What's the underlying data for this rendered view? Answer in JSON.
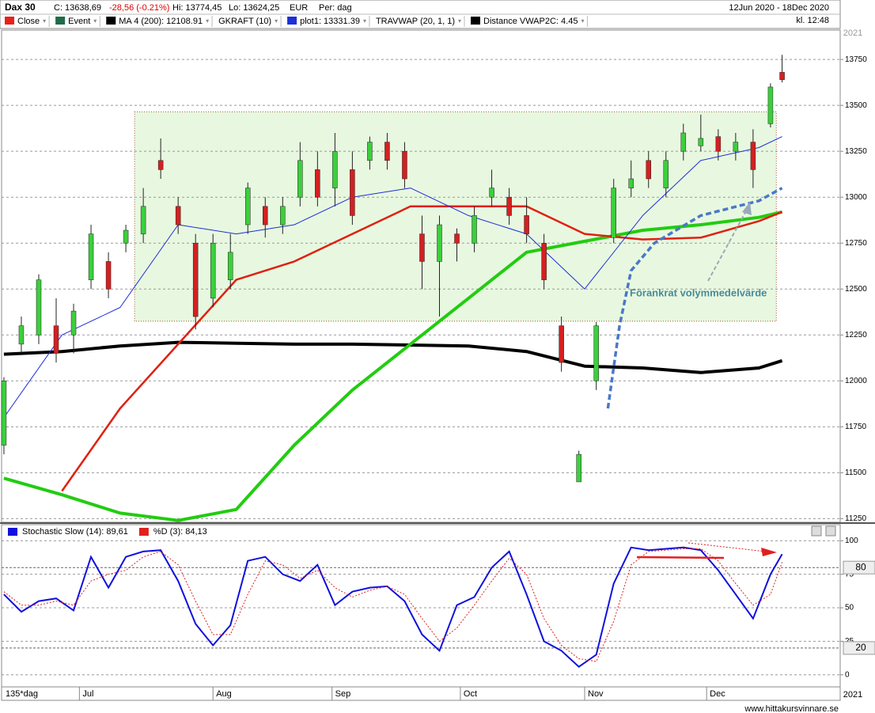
{
  "header": {
    "symbol": "Dax 30",
    "close": "C: 13638,69",
    "change": "-28,56 (-0.21%)",
    "high": "Hi: 13774,45",
    "low": "Lo: 13624,25",
    "currency": "EUR",
    "period": "Per: dag",
    "range": "12Jun 2020 - 18Dec 2020",
    "time": "kl. 12:48",
    "legend": [
      {
        "label": "Close",
        "color": "#e8221b"
      },
      {
        "label": "Event",
        "color": "#1f6b4a"
      },
      {
        "label": "MA 4 (200): 12108.91",
        "color": "#000000"
      },
      {
        "label": "GKRAFT (10)",
        "color": null
      },
      {
        "label": "plot1: 13331.39",
        "color": "#1c2fd8"
      },
      {
        "label": "TRAVWAP (20, 1, 1)",
        "color": null
      },
      {
        "label": "Distance VWAP2C: 4.45",
        "color": "#000000"
      }
    ]
  },
  "year_top": "2021",
  "year_bottom": "2021",
  "bar_count": "135*dag",
  "footer": "www.hittakursvinnare.se",
  "chart_data": [
    {
      "type": "candlestick",
      "up_color": "#3ccf3c",
      "down_color": "#d42020",
      "x": [
        0,
        3,
        6,
        9,
        12,
        15,
        18,
        21,
        24,
        27,
        30,
        33,
        36,
        39,
        42,
        45,
        48,
        51,
        54,
        57,
        60,
        63,
        66,
        69,
        72,
        75,
        78,
        81,
        84,
        87,
        90,
        93,
        96,
        99,
        102,
        105,
        108,
        111,
        114,
        117,
        120,
        123,
        126,
        129,
        132,
        134
      ],
      "open": [
        11650,
        12200,
        12250,
        12300,
        12250,
        12550,
        12650,
        12750,
        12800,
        13200,
        12950,
        12750,
        12450,
        12550,
        12850,
        12950,
        12850,
        13000,
        13150,
        13050,
        13150,
        13200,
        13300,
        13250,
        12800,
        12650,
        12800,
        12750,
        13000,
        13000,
        12900,
        12750,
        12300,
        11450,
        12000,
        12780,
        13050,
        13200,
        13050,
        13250,
        13280,
        13330,
        13250,
        13300,
        13400,
        13680
      ],
      "high": [
        12020,
        12350,
        12580,
        12450,
        12420,
        12850,
        12700,
        12850,
        13050,
        13320,
        13000,
        12800,
        12800,
        12800,
        13080,
        13000,
        13000,
        13300,
        13250,
        13350,
        13250,
        13330,
        13350,
        13300,
        12900,
        12900,
        12830,
        12950,
        13150,
        13050,
        13000,
        12800,
        12350,
        11620,
        12320,
        13100,
        13200,
        13250,
        13250,
        13400,
        13450,
        13370,
        13350,
        13370,
        13620,
        13775
      ],
      "low": [
        11600,
        12150,
        12200,
        12100,
        12150,
        12500,
        12450,
        12700,
        12750,
        13100,
        12800,
        12280,
        12400,
        12500,
        12800,
        12780,
        12800,
        12950,
        12950,
        12950,
        12850,
        13150,
        13150,
        13050,
        12500,
        12350,
        12650,
        12700,
        12950,
        12850,
        12750,
        12500,
        12050,
        11450,
        11950,
        12750,
        13000,
        13050,
        13000,
        13200,
        13250,
        13200,
        13200,
        13050,
        13380,
        13625
      ],
      "close": [
        12000,
        12300,
        12550,
        12150,
        12380,
        12800,
        12500,
        12820,
        12950,
        13150,
        12850,
        12350,
        12750,
        12700,
        13050,
        12850,
        12950,
        13200,
        13000,
        13250,
        12900,
        13300,
        13200,
        13100,
        12650,
        12850,
        12750,
        12900,
        13050,
        12900,
        12800,
        12550,
        12100,
        11600,
        12300,
        13050,
        13100,
        13100,
        13200,
        13350,
        13320,
        13250,
        13300,
        13150,
        13600,
        13640
      ],
      "lines": [
        {
          "color": "#000000",
          "width": 4,
          "x": [
            0,
            10,
            20,
            30,
            40,
            50,
            60,
            70,
            80,
            90,
            100,
            110,
            120,
            130,
            134
          ],
          "values": [
            12145,
            12160,
            12190,
            12210,
            12205,
            12200,
            12200,
            12195,
            12190,
            12160,
            12080,
            12070,
            12045,
            12070,
            12110
          ]
        },
        {
          "color": "#22cc11",
          "width": 4,
          "x": [
            0,
            10,
            20,
            30,
            40,
            50,
            60,
            70,
            80,
            90,
            100,
            110,
            120,
            130,
            134
          ],
          "values": [
            11470,
            11380,
            11280,
            11240,
            11300,
            11650,
            11950,
            12200,
            12450,
            12700,
            12760,
            12820,
            12850,
            12890,
            12920
          ]
        },
        {
          "color": "#e02010",
          "width": 2.5,
          "x": [
            0,
            10,
            20,
            30,
            40,
            50,
            60,
            70,
            80,
            90,
            100,
            110,
            120,
            130,
            134
          ],
          "values": [
            null,
            11400,
            11850,
            12200,
            12550,
            12650,
            12800,
            12950,
            12950,
            12950,
            12800,
            12770,
            12780,
            12870,
            12920
          ]
        },
        {
          "color": "#1c2fd8",
          "width": 1,
          "x": [
            0,
            10,
            20,
            30,
            40,
            50,
            60,
            70,
            80,
            90,
            100,
            110,
            120,
            130,
            134
          ],
          "values": [
            11800,
            12250,
            12400,
            12850,
            12800,
            12850,
            13000,
            13050,
            12900,
            12800,
            12500,
            12900,
            13200,
            13270,
            13330
          ]
        },
        {
          "color": "#4a78c8",
          "width": 3.5,
          "dash": "7 4",
          "x": [
            104,
            106,
            108,
            112,
            120,
            130,
            134
          ],
          "values": [
            11850,
            12300,
            12600,
            12750,
            12900,
            12980,
            13050
          ]
        }
      ],
      "box": {
        "x": [
          22.5,
          133
        ],
        "y": [
          12325,
          13465
        ],
        "color": "#e8f8e0"
      },
      "annotation": "Förankrat volymmedelvärde",
      "xlim": [
        -0.4,
        144
      ],
      "ylim": [
        11230,
        13910
      ],
      "yticks": [
        11250,
        11500,
        11750,
        12000,
        12250,
        12500,
        12750,
        13000,
        13250,
        13500,
        13750
      ],
      "xticks": [
        {
          "value": 13,
          "label": "Jul"
        },
        {
          "value": 36,
          "label": "Aug"
        },
        {
          "value": 56.5,
          "label": "Sep"
        },
        {
          "value": 78.6,
          "label": "Oct"
        },
        {
          "value": 100,
          "label": "Nov"
        },
        {
          "value": 121,
          "label": "Dec"
        }
      ],
      "grid": true
    },
    {
      "type": "line",
      "xlim": [
        -0.4,
        144
      ],
      "ylim": [
        -9,
        112
      ],
      "yticks": [
        0,
        25,
        50,
        75,
        100
      ],
      "levels": [
        80,
        20
      ],
      "grid": true,
      "x": [
        0,
        3,
        6,
        9,
        12,
        15,
        18,
        21,
        24,
        27,
        30,
        33,
        36,
        39,
        42,
        45,
        48,
        51,
        54,
        57,
        60,
        63,
        66,
        69,
        72,
        75,
        78,
        81,
        84,
        87,
        90,
        93,
        96,
        99,
        102,
        105,
        108,
        111,
        114,
        117,
        120,
        123,
        126,
        129,
        132,
        134
      ],
      "series": [
        {
          "name": "Stochastic Slow (14): 89,61",
          "color": "#1010dd",
          "width": 2,
          "values": [
            60,
            47,
            55,
            57,
            48,
            88,
            65,
            88,
            92,
            93,
            70,
            38,
            22,
            37,
            85,
            88,
            75,
            70,
            82,
            52,
            62,
            65,
            66,
            55,
            30,
            18,
            52,
            58,
            80,
            92,
            60,
            25,
            18,
            6,
            15,
            68,
            95,
            93,
            94,
            95,
            93,
            78,
            60,
            42,
            75,
            90
          ]
        },
        {
          "name": "%D (3): 84,13",
          "color": "#e02020",
          "width": 1,
          "dash": "2 2",
          "values": [
            62,
            52,
            52,
            55,
            52,
            70,
            75,
            78,
            88,
            92,
            82,
            55,
            30,
            30,
            60,
            85,
            82,
            72,
            78,
            65,
            58,
            63,
            66,
            60,
            42,
            25,
            35,
            52,
            70,
            87,
            75,
            42,
            22,
            12,
            10,
            40,
            82,
            92,
            93,
            94,
            94,
            85,
            68,
            52,
            60,
            84
          ]
        }
      ]
    }
  ]
}
